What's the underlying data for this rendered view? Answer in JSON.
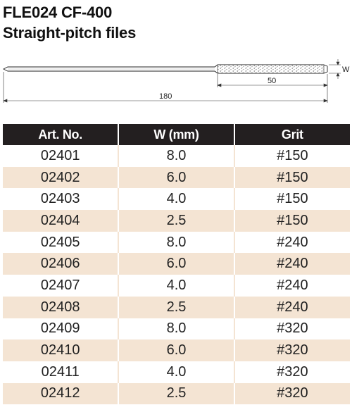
{
  "header": {
    "title": "FLE024 CF-400",
    "subtitle": "Straight-pitch files"
  },
  "drawing": {
    "overall_length": "180",
    "cut_length": "50",
    "width_label": "W"
  },
  "table": {
    "columns": [
      "Art. No.",
      "W (mm)",
      "Grit"
    ],
    "rows": [
      [
        "02401",
        "8.0",
        "#150"
      ],
      [
        "02402",
        "6.0",
        "#150"
      ],
      [
        "02403",
        "4.0",
        "#150"
      ],
      [
        "02404",
        "2.5",
        "#150"
      ],
      [
        "02405",
        "8.0",
        "#240"
      ],
      [
        "02406",
        "6.0",
        "#240"
      ],
      [
        "02407",
        "4.0",
        "#240"
      ],
      [
        "02408",
        "2.5",
        "#240"
      ],
      [
        "02409",
        "8.0",
        "#320"
      ],
      [
        "02410",
        "6.0",
        "#320"
      ],
      [
        "02411",
        "4.0",
        "#320"
      ],
      [
        "02412",
        "2.5",
        "#320"
      ]
    ]
  }
}
